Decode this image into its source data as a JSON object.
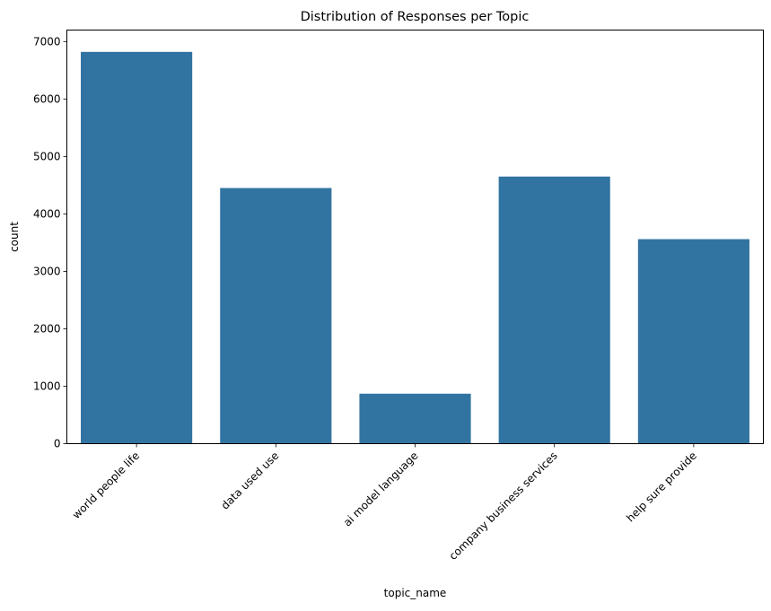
{
  "chart_data": {
    "type": "bar",
    "title": "Distribution of Responses per Topic",
    "xlabel": "topic_name",
    "ylabel": "count",
    "categories": [
      "world people life",
      "data used use",
      "ai model language",
      "company business services",
      "help sure provide"
    ],
    "values": [
      6820,
      4450,
      870,
      4650,
      3560
    ],
    "ylim": [
      0,
      7200
    ],
    "yticks": [
      0,
      1000,
      2000,
      3000,
      4000,
      5000,
      6000,
      7000
    ],
    "ytick_labels": [
      "0",
      "1000",
      "2000",
      "3000",
      "4000",
      "5000",
      "6000",
      "7000"
    ],
    "bar_color": "#3274a1",
    "grid": false,
    "legend": "none"
  }
}
